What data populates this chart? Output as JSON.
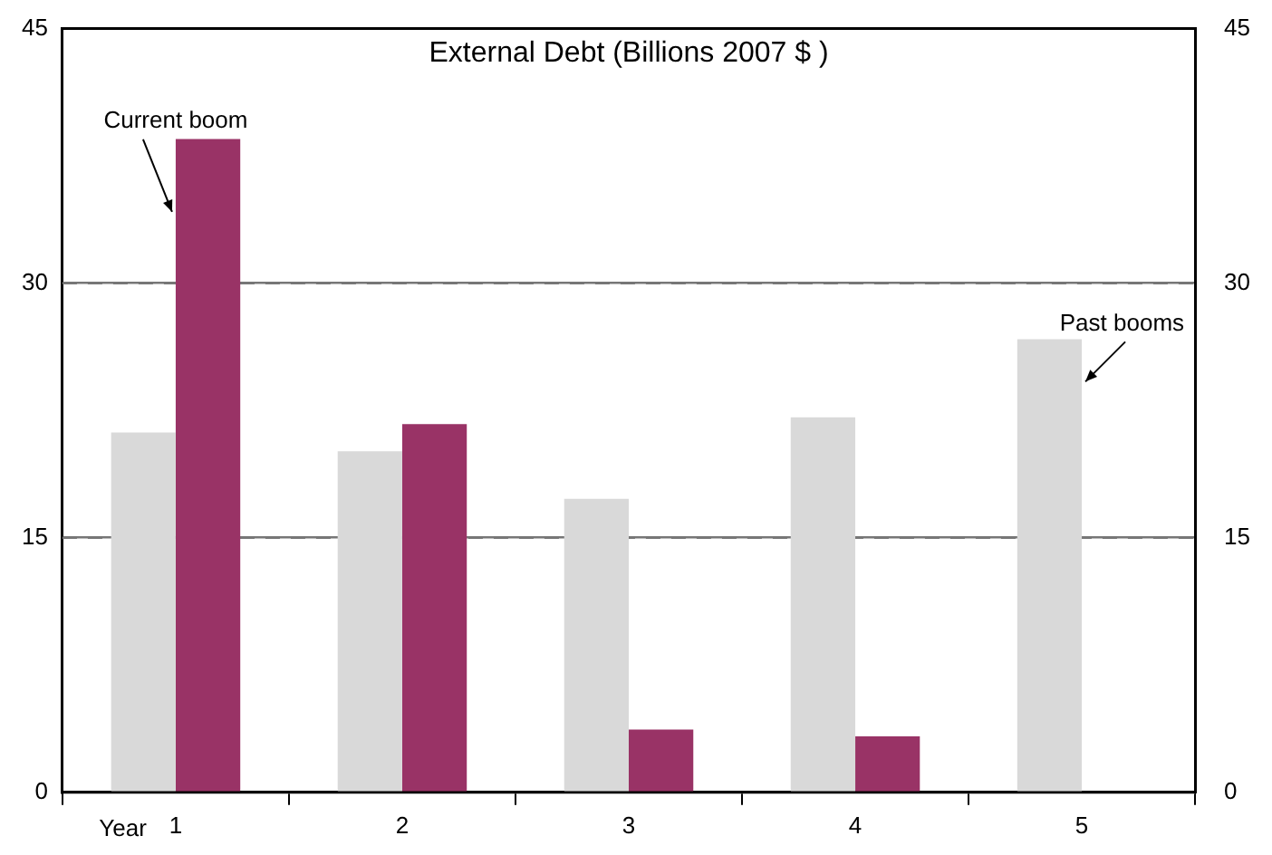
{
  "chart_data": {
    "type": "bar",
    "title": "External Debt (Billions 2007 $ )",
    "xlabel": "Year",
    "categories": [
      "1",
      "2",
      "3",
      "4",
      "5"
    ],
    "series": [
      {
        "color": "#d9d9d9",
        "values": [
          21.2,
          20.1,
          17.3,
          22.1,
          26.7
        ]
      },
      {
        "color": "#993366",
        "values": [
          38.5,
          21.7,
          3.7,
          3.3,
          null
        ]
      }
    ],
    "ylim": [
      0,
      45
    ],
    "yticks": [
      0,
      15,
      30,
      45
    ],
    "y2lim": [
      0,
      45
    ],
    "y2ticks": [
      0,
      15,
      30,
      45
    ],
    "grid": "y",
    "line_style": "dashed",
    "annotations": [
      {
        "text": "Current boom",
        "x": "1",
        "y": 34.2
      },
      {
        "text": "Past booms",
        "x": "5",
        "y": 24.2
      }
    ]
  }
}
